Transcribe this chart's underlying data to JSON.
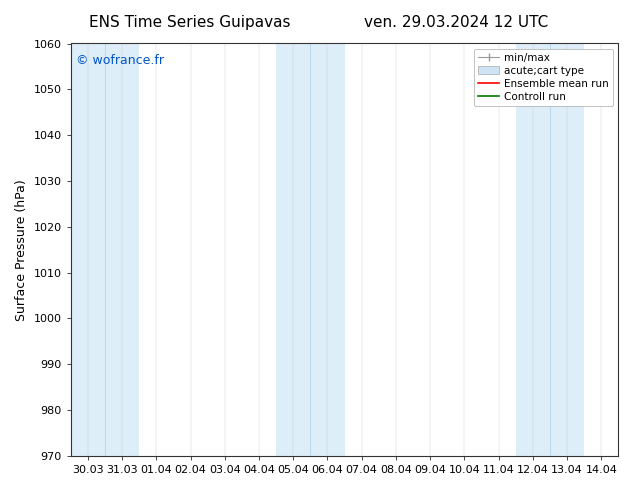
{
  "title_left": "ENS Time Series Guipavas",
  "title_right": "ven. 29.03.2024 12 UTC",
  "ylabel": "Surface Pressure (hPa)",
  "ylim": [
    970,
    1060
  ],
  "yticks": [
    970,
    980,
    990,
    1000,
    1010,
    1020,
    1030,
    1040,
    1050,
    1060
  ],
  "xtick_labels": [
    "30.03",
    "31.03",
    "01.04",
    "02.04",
    "03.04",
    "04.04",
    "05.04",
    "06.04",
    "07.04",
    "08.04",
    "09.04",
    "10.04",
    "11.04",
    "12.04",
    "13.04",
    "14.04"
  ],
  "shade_color": "#ddeef8",
  "shade_line_color": "#aaccee",
  "watermark": "© wofrance.fr",
  "watermark_color": "#0055cc",
  "background_color": "#ffffff",
  "legend_min_max_color": "#999999",
  "legend_box_color": "#cce4f5",
  "legend_ensemble_color": "#ff0000",
  "legend_control_color": "#007700",
  "title_fontsize": 11,
  "axis_label_fontsize": 9,
  "tick_fontsize": 8,
  "watermark_fontsize": 9,
  "legend_fontsize": 7.5
}
